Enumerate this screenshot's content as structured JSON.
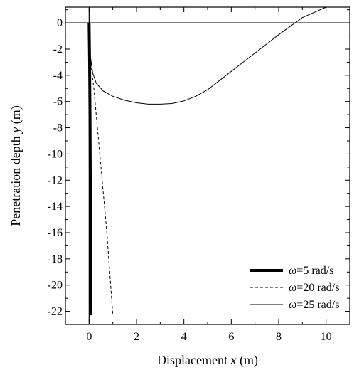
{
  "chart_data": {
    "type": "line",
    "xlabel": "Displacement x (m)",
    "xlabel_parts": {
      "pre": "Displacement ",
      "var": "x",
      "post": " (m)"
    },
    "ylabel": "Penetration depth y (m)",
    "ylabel_parts": {
      "pre": "Penetration depth ",
      "var": "y",
      "post": " (m)"
    },
    "xlim": [
      -1,
      11
    ],
    "ylim": [
      -23,
      1.2
    ],
    "xticks": [
      0,
      2,
      4,
      6,
      8,
      10
    ],
    "yticks": [
      0,
      -2,
      -4,
      -6,
      -8,
      -10,
      -12,
      -14,
      -16,
      -18,
      -20,
      -22
    ],
    "legend_position": "bottom-right",
    "series": [
      {
        "name": "ω=5 rad/s",
        "name_parts": {
          "sym": "ω",
          "rest": "=5 rad/s"
        },
        "style": "thick-solid",
        "x": [
          0.0,
          0.02,
          0.04,
          0.05,
          0.06,
          0.07
        ],
        "y": [
          0.0,
          -3.0,
          -8.0,
          -12.0,
          -17.0,
          -22.3
        ]
      },
      {
        "name": "ω=20 rad/s",
        "name_parts": {
          "sym": "ω",
          "rest": "=20 rad/s"
        },
        "style": "dashed",
        "x": [
          0.0,
          0.03,
          0.1,
          0.2,
          0.35,
          0.55,
          0.75,
          1.0
        ],
        "y": [
          0.0,
          -2.0,
          -3.5,
          -5.0,
          -8.0,
          -12.0,
          -16.0,
          -22.3
        ]
      },
      {
        "name": "ω=25 rad/s",
        "name_parts": {
          "sym": "ω",
          "rest": "=25 rad/s"
        },
        "style": "thin-solid",
        "x": [
          0.0,
          0.05,
          0.15,
          0.3,
          0.6,
          1.0,
          1.5,
          2.0,
          2.5,
          3.0,
          3.5,
          4.0,
          4.5,
          5.0,
          5.5,
          6.0,
          7.0,
          8.0,
          9.0,
          10.0
        ],
        "y": [
          0.0,
          -2.5,
          -3.8,
          -4.6,
          -5.2,
          -5.6,
          -5.9,
          -6.1,
          -6.2,
          -6.2,
          -6.15,
          -5.95,
          -5.6,
          -5.1,
          -4.4,
          -3.7,
          -2.3,
          -0.9,
          0.4,
          1.2
        ]
      }
    ]
  }
}
